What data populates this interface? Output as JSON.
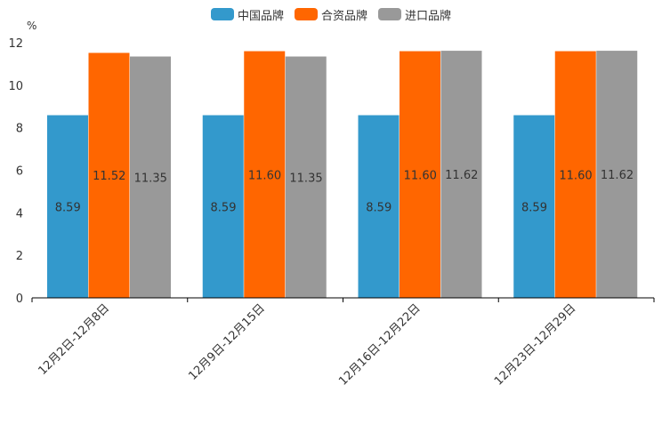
{
  "chart_data": {
    "type": "bar",
    "unit": "%",
    "categories": [
      "12月2日-12月8日",
      "12月9日-12月15日",
      "12月16日-12月22日",
      "12月23日-12月29日"
    ],
    "series": [
      {
        "name": "中国品牌",
        "color": "#3399cc",
        "values": [
          8.59,
          8.59,
          8.59,
          8.59
        ],
        "labels": [
          "8.59",
          "8.59",
          "8.59",
          "8.59"
        ]
      },
      {
        "name": "合资品牌",
        "color": "#ff6600",
        "values": [
          11.52,
          11.6,
          11.6,
          11.6
        ],
        "labels": [
          "11.52",
          "11.60",
          "11.60",
          "11.60"
        ]
      },
      {
        "name": "进口品牌",
        "color": "#999999",
        "values": [
          11.35,
          11.35,
          11.62,
          11.62
        ],
        "labels": [
          "11.35",
          "11.35",
          "11.62",
          "11.62"
        ]
      }
    ],
    "ylim": [
      0,
      12
    ],
    "yticks": [
      0,
      2,
      4,
      6,
      8,
      10,
      12
    ],
    "ytick_labels": [
      "0",
      "2",
      "4",
      "6",
      "8",
      "10",
      "12"
    ],
    "legend_position": "top-center",
    "grid": false
  }
}
